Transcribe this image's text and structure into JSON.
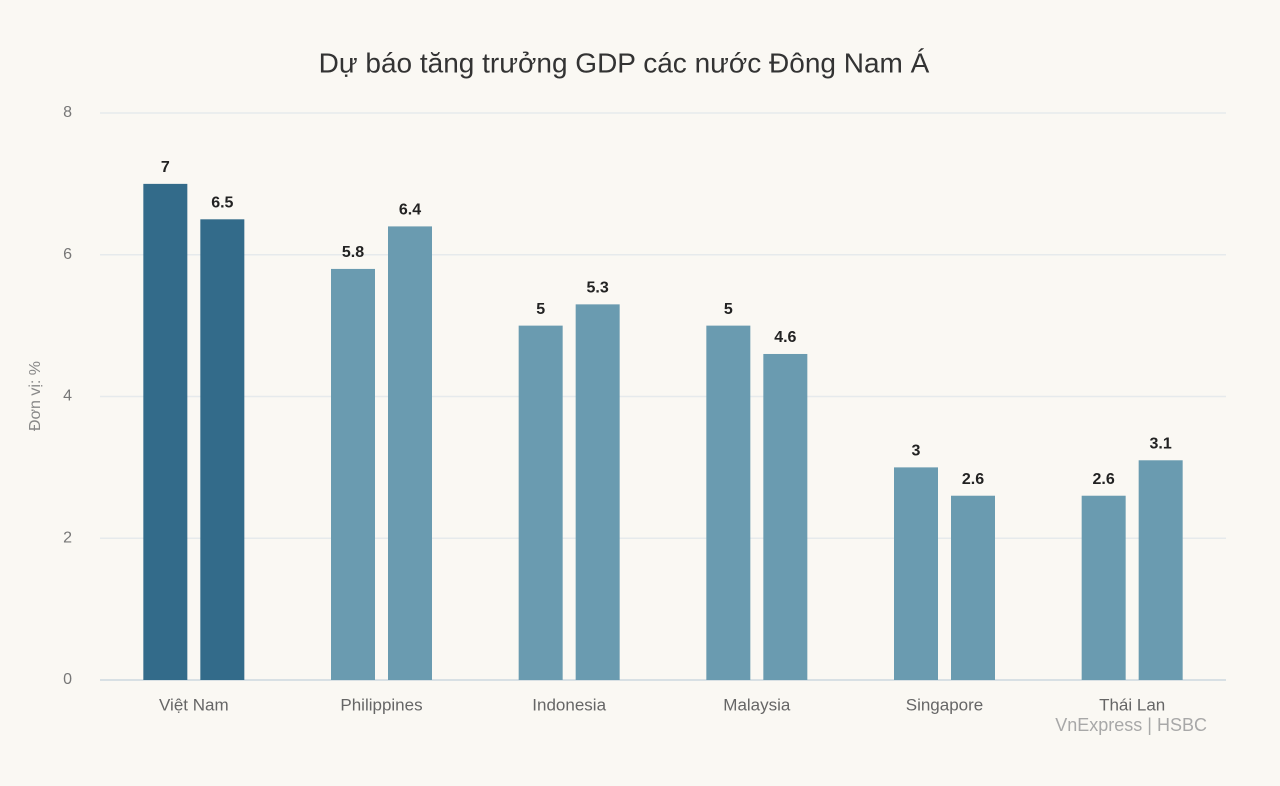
{
  "chart_data": {
    "type": "bar",
    "title": "Dự báo tăng trưởng GDP các nước Đông Nam Á",
    "y_label": "Đơn vị: %",
    "source": "VnExpress | HSBC",
    "categories": [
      "Việt Nam",
      "Philippines",
      "Indonesia",
      "Malaysia",
      "Singapore",
      "Thái Lan"
    ],
    "series": [
      {
        "values": [
          7,
          5.8,
          5,
          5,
          3,
          2.6
        ],
        "colors": [
          "#336b8a",
          "#6a9bb0",
          "#6a9bb0",
          "#6a9bb0",
          "#6a9bb0",
          "#6a9bb0"
        ]
      },
      {
        "values": [
          6.5,
          6.4,
          5.3,
          4.6,
          2.6,
          3.1
        ],
        "colors": [
          "#336b8a",
          "#6a9bb0",
          "#6a9bb0",
          "#6a9bb0",
          "#6a9bb0",
          "#6a9bb0"
        ]
      }
    ],
    "ylim": [
      0,
      8
    ],
    "yticks": [
      0,
      2,
      4,
      6,
      8
    ],
    "grid": true
  }
}
